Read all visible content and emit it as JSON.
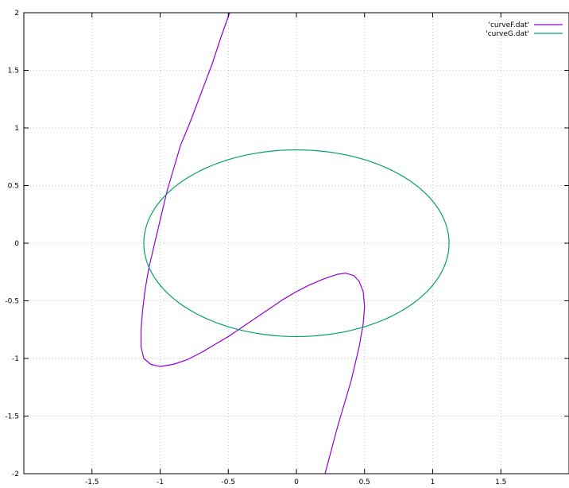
{
  "chart_data": {
    "type": "line",
    "title": "",
    "xlabel": "",
    "ylabel": "",
    "xlim": [
      -2,
      2
    ],
    "ylim": [
      -2,
      2
    ],
    "grid": true,
    "legend_position": "top-right",
    "x_ticks": [
      -1.5,
      -1,
      -0.5,
      0,
      0.5,
      1,
      1.5
    ],
    "x_tick_labels": [
      "-1.5",
      "-1",
      "-0.5",
      "0",
      "0.5",
      "1",
      "1.5"
    ],
    "y_ticks": [
      -2,
      -1.5,
      -1,
      -0.5,
      0,
      0.5,
      1,
      1.5,
      2
    ],
    "y_tick_labels": [
      "-2",
      "-1.5",
      "-1",
      "-0.5",
      "0",
      "0.5",
      "1",
      "1.5",
      "2"
    ],
    "series": [
      {
        "name": "'curveF.dat'",
        "color": "#9400d3",
        "points": [
          [
            0.21,
            -2.0
          ],
          [
            0.3,
            -1.6
          ],
          [
            0.4,
            -1.2
          ],
          [
            0.46,
            -0.9
          ],
          [
            0.49,
            -0.7
          ],
          [
            0.5,
            -0.55
          ],
          [
            0.49,
            -0.42
          ],
          [
            0.46,
            -0.33
          ],
          [
            0.42,
            -0.28
          ],
          [
            0.36,
            -0.26
          ],
          [
            0.3,
            -0.27
          ],
          [
            0.2,
            -0.31
          ],
          [
            0.1,
            -0.36
          ],
          [
            0.0,
            -0.42
          ],
          [
            -0.1,
            -0.49
          ],
          [
            -0.2,
            -0.57
          ],
          [
            -0.3,
            -0.65
          ],
          [
            -0.4,
            -0.73
          ],
          [
            -0.5,
            -0.81
          ],
          [
            -0.6,
            -0.88
          ],
          [
            -0.7,
            -0.95
          ],
          [
            -0.8,
            -1.01
          ],
          [
            -0.9,
            -1.05
          ],
          [
            -1.0,
            -1.07
          ],
          [
            -1.07,
            -1.05
          ],
          [
            -1.12,
            -1.0
          ],
          [
            -1.14,
            -0.9
          ],
          [
            -1.14,
            -0.75
          ],
          [
            -1.13,
            -0.6
          ],
          [
            -1.11,
            -0.4
          ],
          [
            -1.08,
            -0.2
          ],
          [
            -1.04,
            0.0
          ],
          [
            -1.0,
            0.2
          ],
          [
            -0.95,
            0.45
          ],
          [
            -0.9,
            0.65
          ],
          [
            -0.85,
            0.85
          ],
          [
            -0.78,
            1.05
          ],
          [
            -0.7,
            1.3
          ],
          [
            -0.62,
            1.55
          ],
          [
            -0.55,
            1.8
          ],
          [
            -0.49,
            2.0
          ]
        ]
      },
      {
        "name": "'curveG.dat'",
        "color": "#009e73",
        "ellipse": {
          "cx": 0,
          "cy": 0,
          "rx": 1.12,
          "ry": 0.81
        }
      }
    ]
  }
}
